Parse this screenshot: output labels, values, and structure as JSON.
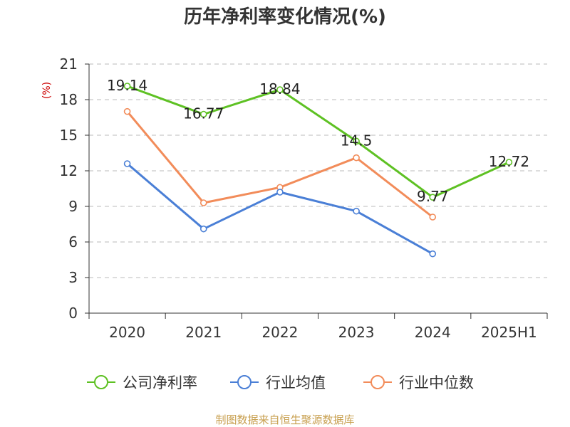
{
  "chart_data": {
    "type": "line",
    "title": "历年净利率变化情况(%)",
    "ylabel": "(%)",
    "xlabel": "",
    "categories": [
      "2020",
      "2021",
      "2022",
      "2023",
      "2024",
      "2025H1"
    ],
    "ylim": [
      0,
      21
    ],
    "yticks": [
      0,
      3,
      6,
      9,
      12,
      15,
      18,
      21
    ],
    "grid": true,
    "legend_position": "bottom",
    "series": [
      {
        "name": "公司净利率",
        "color": "#5ec123",
        "values": [
          19.14,
          16.77,
          18.84,
          14.5,
          9.77,
          12.72
        ],
        "labels": [
          "19.14",
          "16.77",
          "18.84",
          "14.5",
          "9.77",
          "12.72"
        ]
      },
      {
        "name": "行业均值",
        "color": "#4a7fd6",
        "values": [
          12.6,
          7.1,
          10.2,
          8.6,
          5.0,
          null
        ]
      },
      {
        "name": "行业中位数",
        "color": "#f28c5a",
        "values": [
          17.0,
          9.3,
          10.6,
          13.1,
          8.1,
          null
        ]
      }
    ],
    "source": "制图数据来自恒生聚源数据库"
  }
}
